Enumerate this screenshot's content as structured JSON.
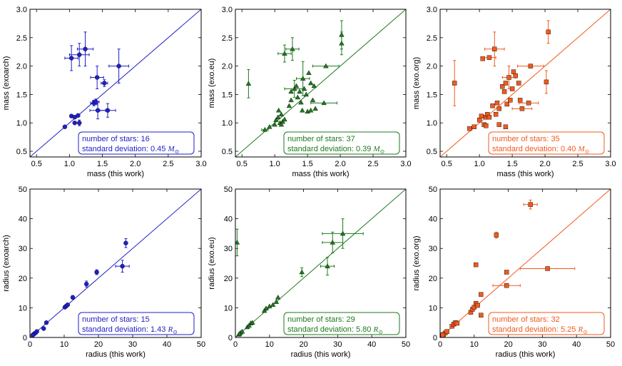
{
  "chart_data": [
    {
      "type": "scatter",
      "xlabel": "mass (this work)",
      "ylabel": "mass (exoarch)",
      "xlim": [
        0.4,
        3.0
      ],
      "ylim": [
        0.4,
        3.0
      ],
      "xticks": [
        "0.5",
        "1.0",
        "1.5",
        "2.0",
        "2.5",
        "3.0"
      ],
      "yticks": [
        "0.5",
        "1.0",
        "1.5",
        "2.0",
        "2.5",
        "3.0"
      ],
      "color": "#1f1fc8",
      "marker": "circle",
      "annotation": {
        "line1": "number of stars: 16",
        "line2_prefix": "standard deviation:  0.45",
        "unit": "M",
        "unit_sub": "⊙"
      },
      "points": [
        {
          "x": 0.93,
          "y": 0.93
        },
        {
          "x": 1.03,
          "y": 1.12
        },
        {
          "x": 1.08,
          "y": 1.0
        },
        {
          "x": 1.08,
          "y": 1.1
        },
        {
          "x": 1.13,
          "y": 1.13
        },
        {
          "x": 1.03,
          "y": 2.14,
          "xe": 0.1,
          "ye": 0.22
        },
        {
          "x": 1.15,
          "y": 2.2,
          "xe": 0.15,
          "ye": 0.2
        },
        {
          "x": 1.24,
          "y": 2.3,
          "xe": 0.12,
          "ye": 0.3
        },
        {
          "x": 1.37,
          "y": 1.35,
          "xe": 0.05,
          "ye": 0.05
        },
        {
          "x": 1.4,
          "y": 1.37,
          "xe": 0.05,
          "ye": 0.05
        },
        {
          "x": 1.42,
          "y": 1.8,
          "xe": 0.1,
          "ye": 0.2
        },
        {
          "x": 1.43,
          "y": 1.22,
          "xe": 0.12,
          "ye": 0.15
        },
        {
          "x": 1.53,
          "y": 1.7,
          "xe": 0.05,
          "ye": 0.06
        },
        {
          "x": 1.58,
          "y": 1.22,
          "xe": 0.12,
          "ye": 0.12
        },
        {
          "x": 1.75,
          "y": 2.0,
          "xe": 0.15,
          "ye": 0.3
        },
        {
          "x": 1.15,
          "y": 1.0,
          "ye": 0.05
        }
      ]
    },
    {
      "type": "scatter",
      "xlabel": "mass (this work)",
      "ylabel": "mass (exo.eu)",
      "xlim": [
        0.4,
        3.0
      ],
      "ylim": [
        0.4,
        3.0
      ],
      "xticks": [
        "0.5",
        "1.0",
        "1.5",
        "2.0",
        "2.5",
        "3.0"
      ],
      "yticks": [
        "0.5",
        "1.0",
        "1.5",
        "2.0",
        "2.5",
        "3.0"
      ],
      "color": "#1e7a1e",
      "marker": "triangle",
      "annotation": {
        "line1": "number of stars: 37",
        "line2_prefix": "standard deviation:  0.39",
        "unit": "M",
        "unit_sub": "⊙"
      },
      "points": [
        {
          "x": 0.6,
          "y": 1.69,
          "ye": 0.25
        },
        {
          "x": 0.85,
          "y": 0.88,
          "xe": 0.05
        },
        {
          "x": 0.92,
          "y": 0.93
        },
        {
          "x": 1.0,
          "y": 0.97
        },
        {
          "x": 1.02,
          "y": 1.05
        },
        {
          "x": 1.05,
          "y": 1.1
        },
        {
          "x": 1.06,
          "y": 1.22
        },
        {
          "x": 1.08,
          "y": 1.0
        },
        {
          "x": 1.1,
          "y": 1.15
        },
        {
          "x": 1.12,
          "y": 1.02
        },
        {
          "x": 1.15,
          "y": 1.06
        },
        {
          "x": 1.15,
          "y": 2.22,
          "xe": 0.1,
          "ye": 0.15
        },
        {
          "x": 1.22,
          "y": 1.3
        },
        {
          "x": 1.25,
          "y": 1.4
        },
        {
          "x": 1.27,
          "y": 2.3,
          "xe": 0.1,
          "ye": 0.2
        },
        {
          "x": 1.3,
          "y": 1.6,
          "xe": 0.15,
          "ye": 0.15
        },
        {
          "x": 1.33,
          "y": 1.65
        },
        {
          "x": 1.35,
          "y": 1.45
        },
        {
          "x": 1.38,
          "y": 1.55
        },
        {
          "x": 1.4,
          "y": 1.36
        },
        {
          "x": 1.42,
          "y": 1.22
        },
        {
          "x": 1.43,
          "y": 1.78,
          "xe": 0.1,
          "ye": 0.3
        },
        {
          "x": 1.45,
          "y": 1.6
        },
        {
          "x": 1.48,
          "y": 1.5
        },
        {
          "x": 1.5,
          "y": 1.2
        },
        {
          "x": 1.52,
          "y": 1.88
        },
        {
          "x": 1.55,
          "y": 1.7
        },
        {
          "x": 1.55,
          "y": 1.22
        },
        {
          "x": 1.58,
          "y": 1.4
        },
        {
          "x": 1.6,
          "y": 1.65
        },
        {
          "x": 1.62,
          "y": 1.25
        },
        {
          "x": 1.75,
          "y": 1.35,
          "xe": 0.2
        },
        {
          "x": 1.78,
          "y": 2.0,
          "xe": 0.2
        },
        {
          "x": 2.02,
          "y": 2.4,
          "ye": 0.2
        },
        {
          "x": 2.02,
          "y": 2.55,
          "ye": 0.25
        },
        {
          "x": 1.1,
          "y": 0.97
        },
        {
          "x": 1.25,
          "y": 1.55
        }
      ]
    },
    {
      "type": "scatter",
      "xlabel": "mass (this work)",
      "ylabel": "mass (exo.org)",
      "xlim": [
        0.4,
        3.0
      ],
      "ylim": [
        0.4,
        3.0
      ],
      "xticks": [
        "0.5",
        "1.0",
        "1.5",
        "2.0",
        "2.5",
        "3.0"
      ],
      "yticks": [
        "0.5",
        "1.0",
        "1.5",
        "2.0",
        "2.5",
        "3.0"
      ],
      "color": "#f05a1e",
      "marker": "square",
      "annotation": {
        "line1": "number of stars: 35",
        "line2_prefix": "standard deviation:  0.40",
        "unit": "M",
        "unit_sub": "⊙"
      },
      "points": [
        {
          "x": 0.62,
          "y": 1.7,
          "ye": 0.4
        },
        {
          "x": 0.85,
          "y": 0.9
        },
        {
          "x": 0.92,
          "y": 0.93
        },
        {
          "x": 1.0,
          "y": 1.05
        },
        {
          "x": 1.03,
          "y": 1.12
        },
        {
          "x": 1.05,
          "y": 2.13
        },
        {
          "x": 1.07,
          "y": 0.97
        },
        {
          "x": 1.1,
          "y": 1.1
        },
        {
          "x": 1.12,
          "y": 1.15
        },
        {
          "x": 1.15,
          "y": 2.15,
          "xe": 0.1
        },
        {
          "x": 1.2,
          "y": 1.3
        },
        {
          "x": 1.23,
          "y": 2.3,
          "xe": 0.15,
          "ye": 0.3
        },
        {
          "x": 1.25,
          "y": 1.15
        },
        {
          "x": 1.27,
          "y": 1.35
        },
        {
          "x": 1.3,
          "y": 1.25
        },
        {
          "x": 1.35,
          "y": 1.64
        },
        {
          "x": 1.38,
          "y": 1.55
        },
        {
          "x": 1.4,
          "y": 1.7
        },
        {
          "x": 1.42,
          "y": 1.33
        },
        {
          "x": 1.45,
          "y": 1.8,
          "xe": 0.1,
          "ye": 0.2
        },
        {
          "x": 1.47,
          "y": 1.4
        },
        {
          "x": 1.5,
          "y": 1.6
        },
        {
          "x": 1.52,
          "y": 1.9
        },
        {
          "x": 1.55,
          "y": 1.83
        },
        {
          "x": 1.6,
          "y": 1.7
        },
        {
          "x": 1.62,
          "y": 1.4
        },
        {
          "x": 1.65,
          "y": 1.25,
          "xe": 0.15
        },
        {
          "x": 1.75,
          "y": 1.35,
          "xe": 0.15
        },
        {
          "x": 1.78,
          "y": 2.0,
          "xe": 0.2
        },
        {
          "x": 2.02,
          "y": 1.72,
          "ye": 0.2
        },
        {
          "x": 2.05,
          "y": 2.6,
          "ye": 0.2
        },
        {
          "x": 1.15,
          "y": 1.1
        },
        {
          "x": 1.3,
          "y": 0.97
        },
        {
          "x": 1.4,
          "y": 0.93
        },
        {
          "x": 1.1,
          "y": 0.95
        }
      ]
    },
    {
      "type": "scatter",
      "xlabel": "radius (this work)",
      "ylabel": "radius (exoarch)",
      "xlim": [
        0,
        50
      ],
      "ylim": [
        0,
        50
      ],
      "xticks": [
        "0",
        "10",
        "20",
        "30",
        "40",
        "50"
      ],
      "yticks": [
        "0",
        "10",
        "20",
        "30",
        "40",
        "50"
      ],
      "color": "#1f1fc8",
      "marker": "circle",
      "annotation": {
        "line1": "number of stars: 15",
        "line2_prefix": "standard deviation:  1.43",
        "unit": "R",
        "unit_sub": "⊙"
      },
      "points": [
        {
          "x": 1.0,
          "y": 1.0
        },
        {
          "x": 1.3,
          "y": 1.3
        },
        {
          "x": 1.6,
          "y": 1.5
        },
        {
          "x": 2.0,
          "y": 2.0
        },
        {
          "x": 4.0,
          "y": 3.0
        },
        {
          "x": 4.8,
          "y": 5.0
        },
        {
          "x": 10.2,
          "y": 10.2
        },
        {
          "x": 10.6,
          "y": 10.6
        },
        {
          "x": 11.0,
          "y": 11.0
        },
        {
          "x": 12.5,
          "y": 13.5,
          "ye": 0.6
        },
        {
          "x": 16.5,
          "y": 18.0,
          "ye": 1.0
        },
        {
          "x": 19.5,
          "y": 22.0,
          "ye": 0.8
        },
        {
          "x": 27.0,
          "y": 24.0,
          "xe": 2.0,
          "ye": 2.0
        },
        {
          "x": 28.0,
          "y": 31.8,
          "ye": 1.5
        },
        {
          "x": 0.8,
          "y": 0.8
        }
      ]
    },
    {
      "type": "scatter",
      "xlabel": "radius (this work)",
      "ylabel": "radius (exo.eu)",
      "xlim": [
        0,
        50
      ],
      "ylim": [
        0,
        50
      ],
      "xticks": [
        "0",
        "10",
        "20",
        "30",
        "40",
        "50"
      ],
      "yticks": [
        "0",
        "10",
        "20",
        "30",
        "40",
        "50"
      ],
      "color": "#1e7a1e",
      "marker": "triangle",
      "annotation": {
        "line1": "number of stars: 29",
        "line2_prefix": "standard deviation:  5.80",
        "unit": "R",
        "unit_sub": "⊙"
      },
      "points": [
        {
          "x": 0.5,
          "y": 32.0,
          "ye": 4.5
        },
        {
          "x": 1.0,
          "y": 1.0
        },
        {
          "x": 1.5,
          "y": 1.6
        },
        {
          "x": 2.0,
          "y": 2.0
        },
        {
          "x": 3.5,
          "y": 3.5
        },
        {
          "x": 4.0,
          "y": 4.0
        },
        {
          "x": 4.5,
          "y": 4.8
        },
        {
          "x": 5.0,
          "y": 5.0
        },
        {
          "x": 8.5,
          "y": 9.0
        },
        {
          "x": 9.0,
          "y": 9.8
        },
        {
          "x": 10.0,
          "y": 10.5
        },
        {
          "x": 11.0,
          "y": 11.0
        },
        {
          "x": 12.0,
          "y": 12.0
        },
        {
          "x": 12.5,
          "y": 13.5
        },
        {
          "x": 19.5,
          "y": 22.0,
          "ye": 1.5
        },
        {
          "x": 27.0,
          "y": 24.0,
          "xe": 2.0,
          "ye": 3.0
        },
        {
          "x": 28.5,
          "y": 32.0,
          "xe": 3.0,
          "ye": 3.5
        },
        {
          "x": 31.5,
          "y": 35.0,
          "xe": 6.0,
          "ye": 5.0
        },
        {
          "x": 1.2,
          "y": 1.2
        }
      ]
    },
    {
      "type": "scatter",
      "xlabel": "radius (this work)",
      "ylabel": "radius (exo.org)",
      "xlim": [
        0,
        50
      ],
      "ylim": [
        0,
        50
      ],
      "xticks": [
        "0",
        "10",
        "20",
        "30",
        "40",
        "50"
      ],
      "yticks": [
        "0",
        "10",
        "20",
        "30",
        "40",
        "50"
      ],
      "color": "#f05a1e",
      "marker": "square",
      "annotation": {
        "line1": "number of stars: 32",
        "line2_prefix": "standard deviation:  5.25",
        "unit": "R",
        "unit_sub": "⊙"
      },
      "points": [
        {
          "x": 1.0,
          "y": 1.0
        },
        {
          "x": 1.5,
          "y": 1.5
        },
        {
          "x": 2.0,
          "y": 2.0
        },
        {
          "x": 3.5,
          "y": 3.8
        },
        {
          "x": 4.0,
          "y": 4.5
        },
        {
          "x": 4.5,
          "y": 5.0
        },
        {
          "x": 5.0,
          "y": 4.8
        },
        {
          "x": 9.0,
          "y": 8.5
        },
        {
          "x": 9.5,
          "y": 9.5
        },
        {
          "x": 10.0,
          "y": 10.2
        },
        {
          "x": 10.5,
          "y": 11.5
        },
        {
          "x": 11.0,
          "y": 10.8
        },
        {
          "x": 12.0,
          "y": 14.5
        },
        {
          "x": 10.5,
          "y": 24.5
        },
        {
          "x": 12.0,
          "y": 7.5
        },
        {
          "x": 16.5,
          "y": 34.5,
          "ye": 1.0
        },
        {
          "x": 19.5,
          "y": 22.0
        },
        {
          "x": 19.5,
          "y": 17.5,
          "xe": 4.0
        },
        {
          "x": 26.5,
          "y": 44.8,
          "xe": 2.0,
          "ye": 1.5
        },
        {
          "x": 31.5,
          "y": 23.2,
          "xe": 8.0
        },
        {
          "x": 0.8,
          "y": 0.8
        }
      ]
    }
  ]
}
